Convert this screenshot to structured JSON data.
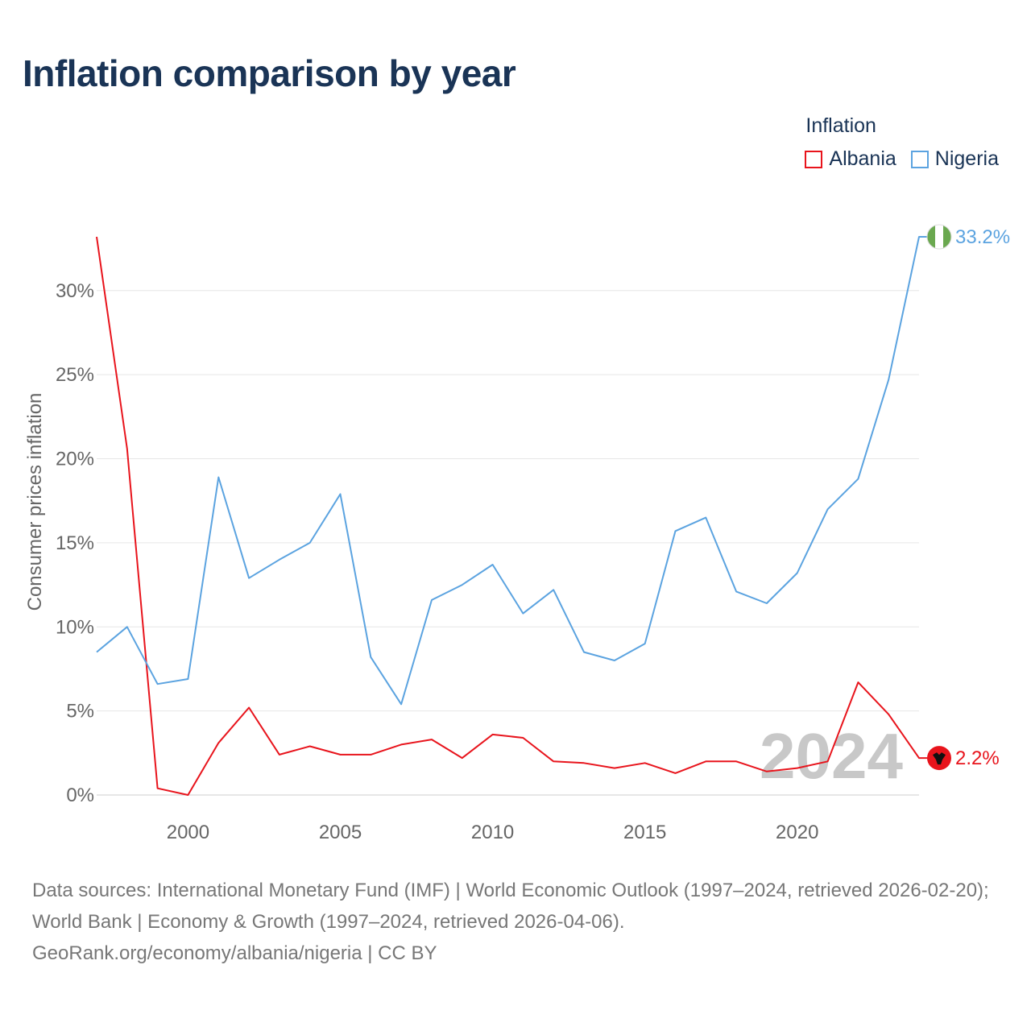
{
  "title": "Inflation comparison by year",
  "legend": {
    "title": "Inflation",
    "items": [
      {
        "name": "Albania",
        "color": "#e8141c"
      },
      {
        "name": "Nigeria",
        "color": "#5ba3e0"
      }
    ]
  },
  "chart_data": {
    "type": "line",
    "title": "Inflation comparison by year",
    "xlabel": "",
    "ylabel": "Consumer prices inflation",
    "x": [
      1997,
      1998,
      1999,
      2000,
      2001,
      2002,
      2003,
      2004,
      2005,
      2006,
      2007,
      2008,
      2009,
      2010,
      2011,
      2012,
      2013,
      2014,
      2015,
      2016,
      2017,
      2018,
      2019,
      2020,
      2021,
      2022,
      2023,
      2024
    ],
    "xlim": [
      1997,
      2024
    ],
    "ylim": [
      0,
      33.2
    ],
    "xticks": [
      "2000",
      "2005",
      "2010",
      "2015",
      "2020"
    ],
    "yticks": [
      "0%",
      "5%",
      "10%",
      "15%",
      "20%",
      "25%",
      "30%"
    ],
    "grid": true,
    "watermark_year": "2024",
    "series": [
      {
        "name": "Albania",
        "color": "#e8141c",
        "values": [
          33.2,
          20.6,
          0.4,
          0.0,
          3.1,
          5.2,
          2.4,
          2.9,
          2.4,
          2.4,
          3.0,
          3.3,
          2.2,
          3.6,
          3.4,
          2.0,
          1.9,
          1.6,
          1.9,
          1.3,
          2.0,
          2.0,
          1.4,
          1.6,
          2.0,
          6.7,
          4.8,
          2.2
        ],
        "end_label": "2.2%"
      },
      {
        "name": "Nigeria",
        "color": "#5ba3e0",
        "values": [
          8.5,
          10.0,
          6.6,
          6.9,
          18.9,
          12.9,
          14.0,
          15.0,
          17.9,
          8.2,
          5.4,
          11.6,
          12.5,
          13.7,
          10.8,
          12.2,
          8.5,
          8.0,
          9.0,
          15.7,
          16.5,
          12.1,
          11.4,
          13.2,
          17.0,
          18.8,
          24.7,
          33.2
        ],
        "end_label": "33.2%"
      }
    ]
  },
  "source": {
    "line1": "Data sources: International Monetary Fund (IMF) | World Economic Outlook (1997–2024, retrieved 2026-02-20); World Bank | Economy & Growth (1997–2024, retrieved 2026-04-06).",
    "line2": "GeoRank.org/economy/albania/nigeria | CC BY"
  }
}
